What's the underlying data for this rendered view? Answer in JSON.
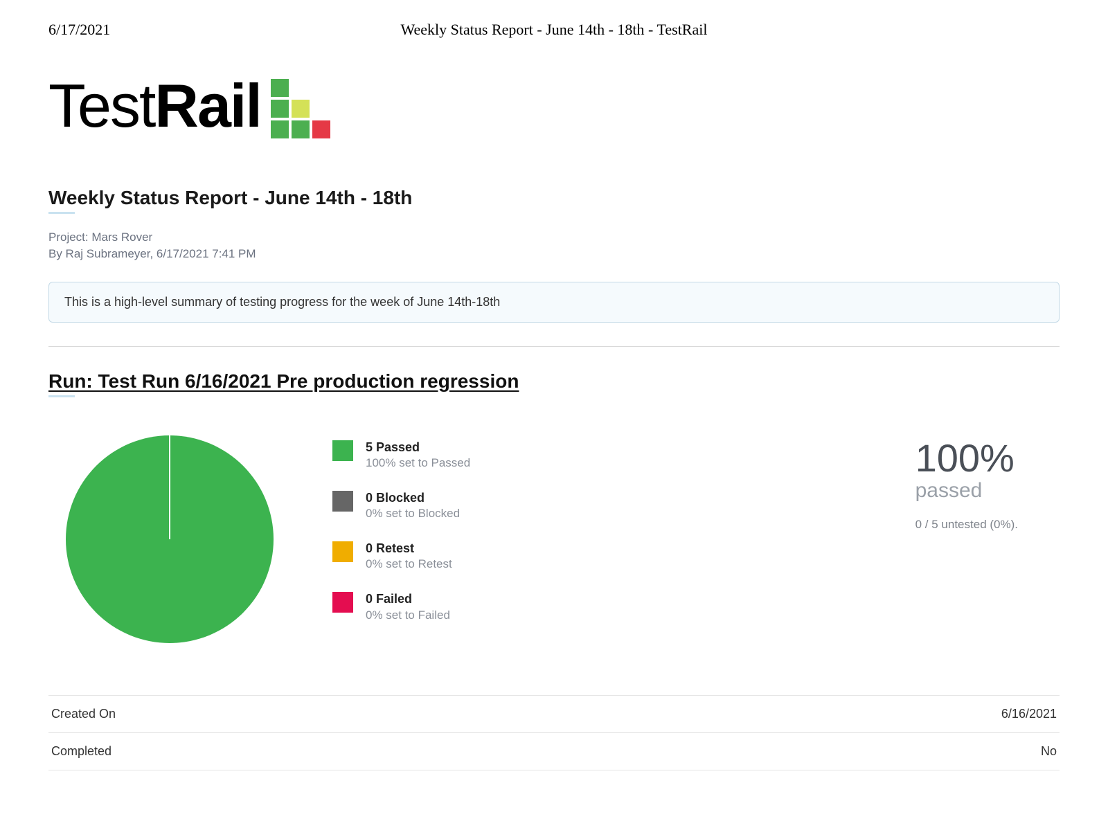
{
  "header": {
    "date": "6/17/2021",
    "page_title": "Weekly Status Report - June 14th - 18th - TestRail"
  },
  "logo": {
    "text_light": "Test",
    "text_bold": "Rail",
    "squares": [
      {
        "color": "#4caf50"
      },
      {
        "color": "transparent"
      },
      {
        "color": "transparent"
      },
      {
        "color": "#4caf50"
      },
      {
        "color": "#d4e157"
      },
      {
        "color": "transparent"
      },
      {
        "color": "#4caf50"
      },
      {
        "color": "#4caf50"
      },
      {
        "color": "#e53946"
      }
    ]
  },
  "report": {
    "title": "Weekly Status Report - June 14th - 18th",
    "project_line": "Project: Mars Rover",
    "by_line": "By Raj Subrameyer, 6/17/2021 7:41 PM",
    "summary": "This is a high-level summary of testing progress for the week of June 14th-18th"
  },
  "run": {
    "title": "Run: Test Run 6/16/2021 Pre production regression",
    "pie": {
      "type": "pie",
      "radius": 150,
      "slices": [
        {
          "label": "Passed",
          "value": 5,
          "pct": 100,
          "color": "#3cb34f"
        }
      ],
      "separator_color": "#ffffff",
      "separator_width": 2,
      "background": "#ffffff"
    },
    "legend": [
      {
        "label": "5 Passed",
        "sub": "100% set to Passed",
        "color": "#3cb34f"
      },
      {
        "label": "0 Blocked",
        "sub": "0% set to Blocked",
        "color": "#666666"
      },
      {
        "label": "0 Retest",
        "sub": "0% set to Retest",
        "color": "#f0ad00"
      },
      {
        "label": "0 Failed",
        "sub": "0% set to Failed",
        "color": "#e40d50"
      }
    ],
    "big": {
      "pct": "100%",
      "label": "passed",
      "sub": "0 / 5 untested (0%)."
    },
    "meta_rows": [
      {
        "key": "Created On",
        "value": "6/16/2021"
      },
      {
        "key": "Completed",
        "value": "No"
      }
    ]
  }
}
